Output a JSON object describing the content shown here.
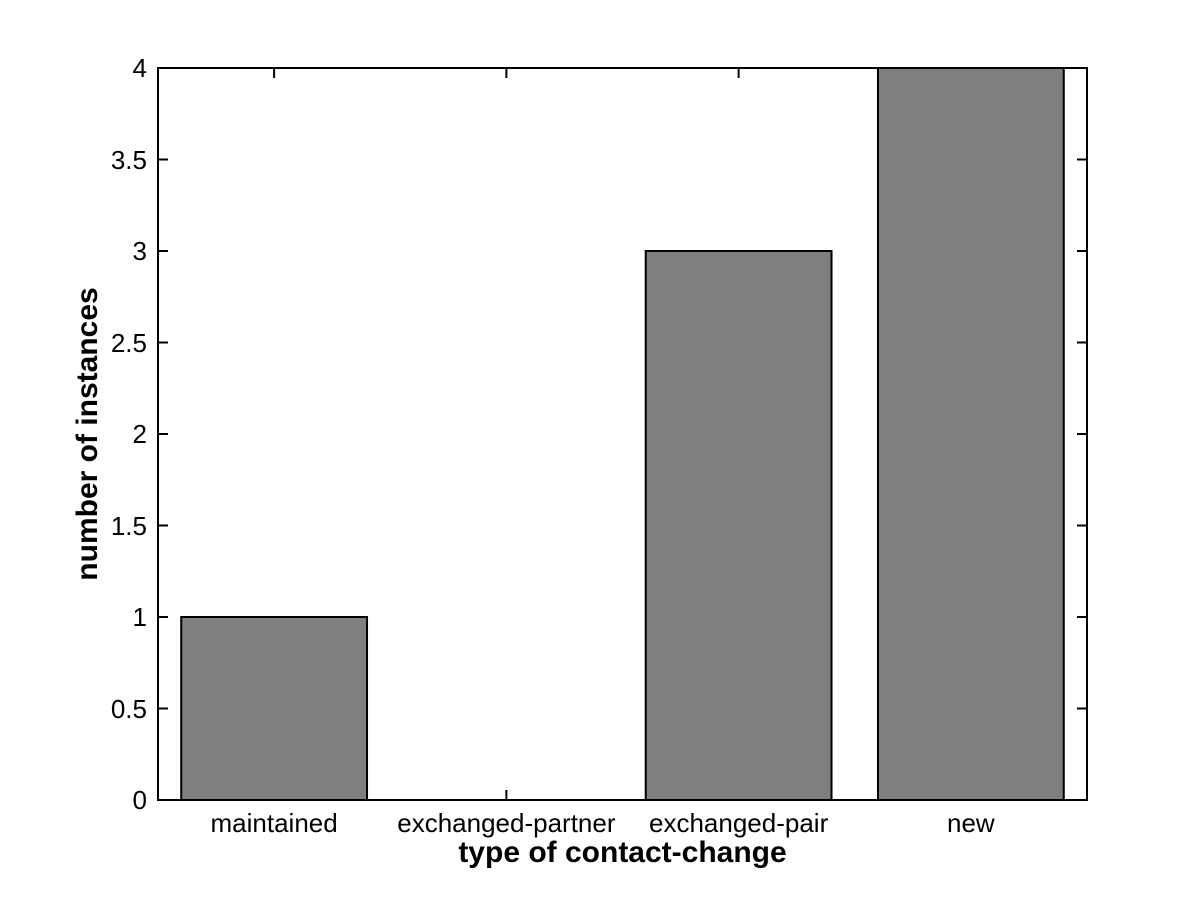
{
  "chart_data": {
    "type": "bar",
    "categories": [
      "maintained",
      "exchanged-partner",
      "exchanged-pair",
      "new"
    ],
    "values": [
      1,
      0,
      3,
      4
    ],
    "title": "",
    "xlabel": "type of contact-change",
    "ylabel": "number of instances",
    "ylim": [
      0,
      4
    ],
    "yticks": [
      0,
      0.5,
      1,
      1.5,
      2,
      2.5,
      3,
      3.5,
      4
    ],
    "ytick_labels": [
      "0",
      "0.5",
      "1",
      "1.5",
      "2",
      "2.5",
      "3",
      "3.5",
      "4"
    ],
    "bar_width_ratio": 0.8,
    "bar_color": "#7F7F7F",
    "bar_edge_color": "#000000",
    "axis_color": "#000000",
    "background_color": "#FFFFFF",
    "grid": "off",
    "legend": "none",
    "tick_direction": "in"
  }
}
